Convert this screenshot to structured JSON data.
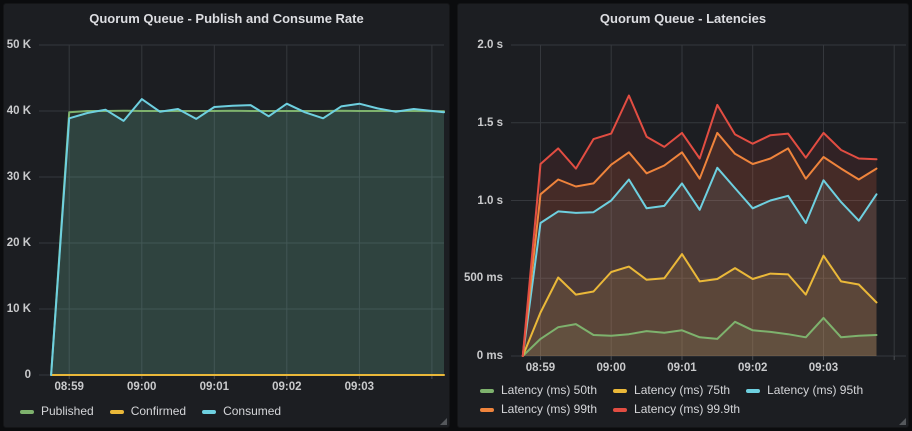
{
  "theme": {
    "page_bg": "#0b0c0e",
    "panel_bg": "#1c1e22",
    "grid_color": "#35383d",
    "tick_color": "#4b4e53",
    "axis_text_color": "#c9cacc",
    "title_color": "#dcdde1",
    "series_green": "#7EB26D",
    "series_yellow": "#EAB839",
    "series_cyan": "#6ED0E0",
    "series_orange": "#EF843C",
    "series_red": "#E24D42"
  },
  "chart_data": [
    {
      "id": "publish-consume-rate",
      "type": "line",
      "title": "Quorum Queue - Publish and Consume Rate",
      "legend_position": "bottom",
      "grid": true,
      "fill_opacity": 0.12,
      "x_range": [
        "08:58:35",
        "09:04:10"
      ],
      "ylim": [
        0,
        50000
      ],
      "y_ticks": [
        {
          "value": 0,
          "label": "0"
        },
        {
          "value": 10000,
          "label": "10 K"
        },
        {
          "value": 20000,
          "label": "20 K"
        },
        {
          "value": 30000,
          "label": "30 K"
        },
        {
          "value": 40000,
          "label": "40 K"
        },
        {
          "value": 50000,
          "label": "50 K"
        }
      ],
      "x_ticks": [
        {
          "time": "08:59:00",
          "label": "08:59"
        },
        {
          "time": "09:00:00",
          "label": "09:00"
        },
        {
          "time": "09:01:00",
          "label": "09:01"
        },
        {
          "time": "09:02:00",
          "label": "09:02"
        },
        {
          "time": "09:03:00",
          "label": "09:03"
        },
        {
          "time": "09:04:00",
          "label": ""
        }
      ],
      "time_points": [
        "08:58:45",
        "08:59:00",
        "08:59:15",
        "08:59:30",
        "08:59:45",
        "09:00:00",
        "09:00:15",
        "09:00:30",
        "09:00:45",
        "09:01:00",
        "09:01:15",
        "09:01:30",
        "09:01:45",
        "09:02:00",
        "09:02:15",
        "09:02:30",
        "09:02:45",
        "09:03:00",
        "09:03:15",
        "09:03:30",
        "09:03:45",
        "09:04:10"
      ],
      "series": [
        {
          "name": "Published",
          "color": "#7EB26D",
          "values": [
            0,
            39800,
            40000,
            40000,
            40050,
            40000,
            40000,
            40000,
            40000,
            40000,
            40050,
            40000,
            40000,
            40000,
            40000,
            40000,
            40050,
            40000,
            40000,
            40000,
            40000,
            39950
          ]
        },
        {
          "name": "Confirmed",
          "color": "#EAB839",
          "values": [
            0,
            0,
            0,
            0,
            0,
            0,
            0,
            0,
            0,
            0,
            0,
            0,
            0,
            0,
            0,
            0,
            0,
            0,
            0,
            0,
            0,
            0
          ]
        },
        {
          "name": "Consumed",
          "color": "#6ED0E0",
          "values": [
            0,
            38900,
            39700,
            40200,
            38500,
            41800,
            39900,
            40300,
            38800,
            40600,
            40800,
            40900,
            39200,
            41100,
            39800,
            38900,
            40700,
            41100,
            40400,
            39900,
            40300,
            39800
          ]
        }
      ]
    },
    {
      "id": "latencies",
      "type": "line",
      "title": "Quorum Queue - Latencies",
      "legend_position": "bottom",
      "grid": true,
      "fill_opacity": 0.11,
      "x_range": [
        "08:58:35",
        "09:04:10"
      ],
      "ylim": [
        0,
        2000
      ],
      "y_ticks": [
        {
          "value": 0,
          "label": "0 ms"
        },
        {
          "value": 500,
          "label": "500 ms"
        },
        {
          "value": 1000,
          "label": "1.0 s"
        },
        {
          "value": 1500,
          "label": "1.5 s"
        },
        {
          "value": 2000,
          "label": "2.0 s"
        }
      ],
      "x_ticks": [
        {
          "time": "08:59:00",
          "label": "08:59"
        },
        {
          "time": "09:00:00",
          "label": "09:00"
        },
        {
          "time": "09:01:00",
          "label": "09:01"
        },
        {
          "time": "09:02:00",
          "label": "09:02"
        },
        {
          "time": "09:03:00",
          "label": "09:03"
        },
        {
          "time": "09:04:00",
          "label": ""
        }
      ],
      "time_points": [
        "08:58:45",
        "08:59:00",
        "08:59:15",
        "08:59:30",
        "08:59:45",
        "09:00:00",
        "09:00:15",
        "09:00:30",
        "09:00:45",
        "09:01:00",
        "09:01:15",
        "09:01:30",
        "09:01:45",
        "09:02:00",
        "09:02:15",
        "09:02:30",
        "09:02:45",
        "09:03:00",
        "09:03:15",
        "09:03:30",
        "09:03:45"
      ],
      "series": [
        {
          "name": "Latency (ms) 50th",
          "color": "#7EB26D",
          "values": [
            0,
            110,
            185,
            205,
            135,
            130,
            140,
            160,
            150,
            165,
            120,
            110,
            220,
            165,
            155,
            140,
            120,
            245,
            120,
            130,
            135
          ]
        },
        {
          "name": "Latency (ms) 75th",
          "color": "#EAB839",
          "values": [
            0,
            280,
            505,
            395,
            415,
            540,
            575,
            490,
            500,
            655,
            480,
            495,
            565,
            495,
            530,
            525,
            395,
            645,
            480,
            460,
            345
          ]
        },
        {
          "name": "Latency (ms) 95th",
          "color": "#6ED0E0",
          "values": [
            0,
            855,
            930,
            920,
            925,
            1000,
            1135,
            950,
            965,
            1110,
            940,
            1210,
            1080,
            950,
            1000,
            1030,
            855,
            1130,
            990,
            870,
            1040
          ]
        },
        {
          "name": "Latency (ms) 99th",
          "color": "#EF843C",
          "values": [
            0,
            1040,
            1135,
            1090,
            1110,
            1230,
            1310,
            1175,
            1225,
            1310,
            1140,
            1435,
            1300,
            1235,
            1270,
            1335,
            1140,
            1280,
            1205,
            1135,
            1205
          ]
        },
        {
          "name": "Latency (ms) 99.9th",
          "color": "#E24D42",
          "values": [
            0,
            1235,
            1335,
            1205,
            1395,
            1430,
            1675,
            1410,
            1345,
            1435,
            1270,
            1615,
            1425,
            1365,
            1420,
            1430,
            1275,
            1435,
            1325,
            1270,
            1265
          ]
        }
      ]
    }
  ]
}
